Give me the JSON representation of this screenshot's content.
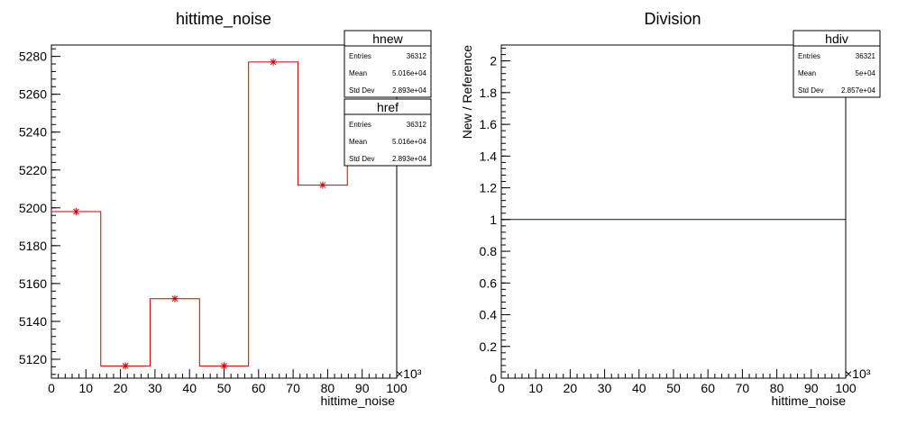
{
  "chart_data": [
    {
      "type": "histogram",
      "title": "hittime_noise",
      "xlabel": "hittime_noise",
      "ylabel": "",
      "x_multiplier": "×10³",
      "xlim": [
        0,
        100
      ],
      "ylim": [
        5110,
        5286
      ],
      "x_ticks": [
        0,
        10,
        20,
        30,
        40,
        50,
        60,
        70,
        80,
        90,
        100
      ],
      "y_ticks": [
        5120,
        5140,
        5160,
        5180,
        5200,
        5220,
        5240,
        5260,
        5280
      ],
      "bin_edges": [
        0,
        14.3,
        28.6,
        42.9,
        57.1,
        71.4,
        85.7,
        100
      ],
      "series": [
        {
          "values": [
            5198,
            5116.5,
            5152,
            5116.5,
            5277,
            5212,
            5237
          ],
          "color": "#cc0000",
          "style": "step-with-markers"
        }
      ],
      "stats": [
        {
          "title": "hnew",
          "rows": [
            {
              "label": "Entries",
              "value": "36312"
            },
            {
              "label": "Mean",
              "value": "5.016e+04"
            },
            {
              "label": "Std Dev",
              "value": "2.893e+04"
            }
          ]
        },
        {
          "title": "href",
          "rows": [
            {
              "label": "Entries",
              "value": "36312"
            },
            {
              "label": "Mean",
              "value": "5.016e+04"
            },
            {
              "label": "Std Dev",
              "value": "2.893e+04"
            }
          ]
        }
      ]
    },
    {
      "type": "line",
      "title": "Division",
      "xlabel": "hittime_noise",
      "ylabel": "New / Reference",
      "x_multiplier": "×10³",
      "xlim": [
        0,
        100
      ],
      "ylim": [
        0,
        2.1
      ],
      "x_ticks": [
        0,
        10,
        20,
        30,
        40,
        50,
        60,
        70,
        80,
        90,
        100
      ],
      "y_ticks": [
        0,
        0.2,
        0.4,
        0.6,
        0.8,
        1,
        1.2,
        1.4,
        1.6,
        1.8,
        2
      ],
      "y_tick_labels": [
        "0",
        "0.2",
        "0.4",
        "0.6",
        "0.8",
        "1",
        "1.2",
        "1.4",
        "1.6",
        "1.8",
        "2"
      ],
      "series": [
        {
          "x": [
            0,
            100
          ],
          "values": [
            1,
            1
          ],
          "color": "#000080"
        }
      ],
      "stats": [
        {
          "title": "hdiv",
          "rows": [
            {
              "label": "Entries",
              "value": "36321"
            },
            {
              "label": "Mean",
              "value": "5e+04"
            },
            {
              "label": "Std Dev",
              "value": "2.857e+04"
            }
          ]
        }
      ]
    }
  ]
}
